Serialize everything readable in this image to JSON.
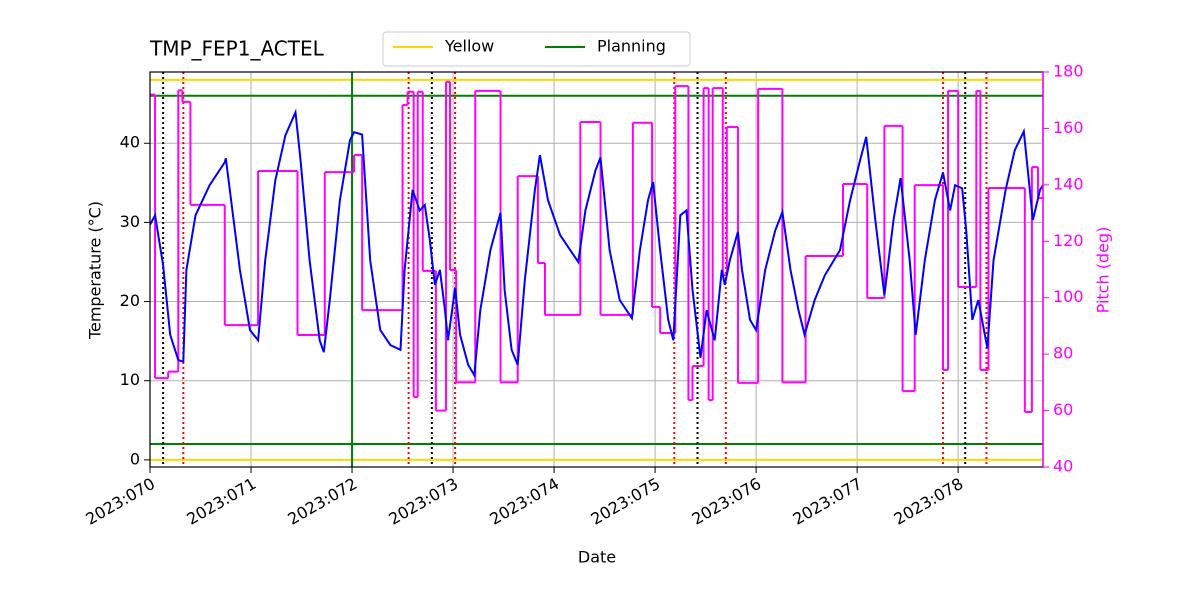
{
  "chart_data": {
    "type": "line",
    "title": "TMP_FEP1_ACTEL",
    "xlabel": "Date",
    "ylabel": "Temperature (°C)",
    "y2label": "Pitch (deg)",
    "y2color": "magenta",
    "grid": true,
    "legend": "top",
    "xlim": [
      70,
      78.84
    ],
    "xticks": [
      {
        "value": 70,
        "label": "2023:070"
      },
      {
        "value": 71,
        "label": "2023:071"
      },
      {
        "value": 72,
        "label": "2023:072"
      },
      {
        "value": 73,
        "label": "2023:073"
      },
      {
        "value": 74,
        "label": "2023:074"
      },
      {
        "value": 75,
        "label": "2023:075"
      },
      {
        "value": 76,
        "label": "2023:076"
      },
      {
        "value": 77,
        "label": "2023:077"
      },
      {
        "value": 78,
        "label": "2023:078"
      }
    ],
    "ylim": [
      -0.9,
      49
    ],
    "yticks": [
      0,
      10,
      20,
      30,
      40
    ],
    "y2lim": [
      40,
      180
    ],
    "y2ticks": [
      40,
      60,
      80,
      100,
      120,
      140,
      160,
      180
    ],
    "series": [
      {
        "color": "blue",
        "x": [
          70.0,
          70.05,
          70.13,
          70.2,
          70.28,
          70.33,
          70.36,
          70.45,
          70.59,
          70.74,
          70.75,
          70.79,
          70.89,
          70.99,
          71.07,
          71.14,
          71.24,
          71.34,
          71.44,
          71.49,
          71.58,
          71.68,
          71.72,
          71.78,
          71.88,
          71.98,
          72.02,
          72.1,
          72.18,
          72.28,
          72.38,
          72.48,
          72.52,
          72.6,
          72.67,
          72.72,
          72.77,
          72.82,
          72.87,
          72.92,
          72.95,
          73.02,
          73.07,
          73.15,
          73.21,
          73.27,
          73.37,
          73.47,
          73.51,
          73.58,
          73.64,
          73.71,
          73.81,
          73.86,
          73.94,
          74.06,
          74.16,
          74.24,
          74.31,
          74.41,
          74.46,
          74.55,
          74.65,
          74.77,
          74.85,
          74.93,
          74.98,
          75.05,
          75.13,
          75.18,
          75.25,
          75.31,
          75.37,
          75.45,
          75.51,
          75.59,
          75.66,
          75.69,
          75.74,
          75.82,
          75.86,
          75.94,
          76.0,
          76.09,
          76.19,
          76.26,
          76.34,
          76.42,
          76.48,
          76.58,
          76.68,
          76.83,
          76.93,
          77.03,
          77.09,
          77.18,
          77.27,
          77.36,
          77.43,
          77.52,
          77.58,
          77.67,
          77.77,
          77.85,
          77.92,
          77.97,
          78.04,
          78.08,
          78.14,
          78.2,
          78.29,
          78.35,
          78.47,
          78.56,
          78.65,
          78.74,
          78.81,
          78.84
        ],
        "values": [
          29.7,
          30.9,
          24.6,
          15.8,
          12.6,
          12.4,
          24.0,
          30.9,
          34.7,
          37.6,
          38.1,
          34.1,
          24.0,
          16.4,
          15.1,
          25.2,
          35.3,
          41.0,
          43.9,
          37.9,
          25.2,
          15.1,
          13.6,
          20.2,
          32.8,
          40.4,
          41.4,
          41.1,
          25.2,
          16.4,
          14.5,
          13.9,
          24.0,
          34.1,
          31.5,
          32.2,
          27.8,
          22.1,
          24.0,
          18.9,
          15.1,
          21.7,
          15.8,
          12.0,
          10.7,
          18.9,
          26.5,
          31.2,
          21.5,
          13.9,
          12.0,
          22.7,
          34.1,
          38.5,
          32.8,
          28.4,
          26.5,
          25.0,
          31.5,
          36.6,
          38.2,
          26.5,
          20.2,
          17.9,
          26.5,
          32.8,
          35.1,
          26.5,
          17.7,
          15.1,
          30.9,
          31.5,
          21.5,
          12.9,
          18.9,
          15.1,
          24.0,
          22.1,
          25.2,
          28.8,
          24.0,
          17.7,
          16.4,
          24.0,
          29.0,
          31.3,
          24.0,
          18.9,
          15.8,
          20.2,
          23.3,
          26.5,
          32.8,
          37.9,
          40.8,
          30.3,
          20.8,
          30.3,
          35.6,
          25.2,
          15.8,
          25.2,
          32.8,
          36.3,
          31.5,
          34.7,
          34.3,
          29.0,
          17.7,
          20.2,
          14.1,
          25.2,
          34.1,
          39.1,
          41.5,
          30.3,
          34.1,
          34.7
        ]
      },
      {
        "color": "magenta",
        "axis": "y2",
        "drawstyle": "steps-post",
        "x": [
          70.0,
          70.05,
          70.18,
          70.28,
          70.32,
          70.4,
          70.74,
          71.07,
          71.46,
          71.73,
          72.02,
          72.1,
          72.5,
          72.55,
          72.61,
          72.65,
          72.7,
          72.83,
          72.93,
          72.97,
          73.03,
          73.22,
          73.47,
          73.64,
          73.84,
          73.91,
          74.26,
          74.46,
          74.78,
          74.97,
          75.05,
          75.2,
          75.33,
          75.37,
          75.48,
          75.53,
          75.57,
          75.67,
          75.71,
          75.82,
          76.02,
          76.26,
          76.49,
          76.86,
          77.1,
          77.27,
          77.45,
          77.57,
          77.85,
          77.9,
          78.0,
          78.18,
          78.22,
          78.3,
          78.66,
          78.73,
          78.79
        ],
        "values": [
          172,
          71.5,
          73.8,
          173.5,
          169.4,
          132.9,
          90.3,
          144.9,
          86.8,
          144.5,
          150.6,
          95.6,
          168.3,
          173,
          64.8,
          173,
          109.5,
          60,
          176.5,
          109.8,
          70,
          173.3,
          70,
          143.1,
          112.3,
          93.9,
          162.3,
          93.9,
          162,
          96.7,
          87.5,
          175,
          63.7,
          75.8,
          174.3,
          63.7,
          174.3,
          108,
          160.5,
          69.8,
          174,
          70,
          114.8,
          140.3,
          99.9,
          160.9,
          66.9,
          139.9,
          74.4,
          173.3,
          103.8,
          173.3,
          74.4,
          138.9,
          59.5,
          146.3,
          135.3
        ]
      }
    ],
    "hlines": [
      {
        "name": "Yellow",
        "color": "gold",
        "values": [
          0,
          48
        ]
      },
      {
        "name": "Planning",
        "color": "green",
        "values": [
          2,
          46
        ]
      }
    ],
    "vlines": [
      {
        "color": "green",
        "style": "solid",
        "x": [
          72
        ]
      },
      {
        "color": "black",
        "style": "dotted",
        "x": [
          70.13,
          72.79,
          75.42,
          78.07
        ]
      },
      {
        "color": "red",
        "style": "dotted",
        "x": [
          70.33,
          72.56,
          73.02,
          75.19,
          75.7,
          77.85,
          78.28
        ]
      }
    ]
  }
}
